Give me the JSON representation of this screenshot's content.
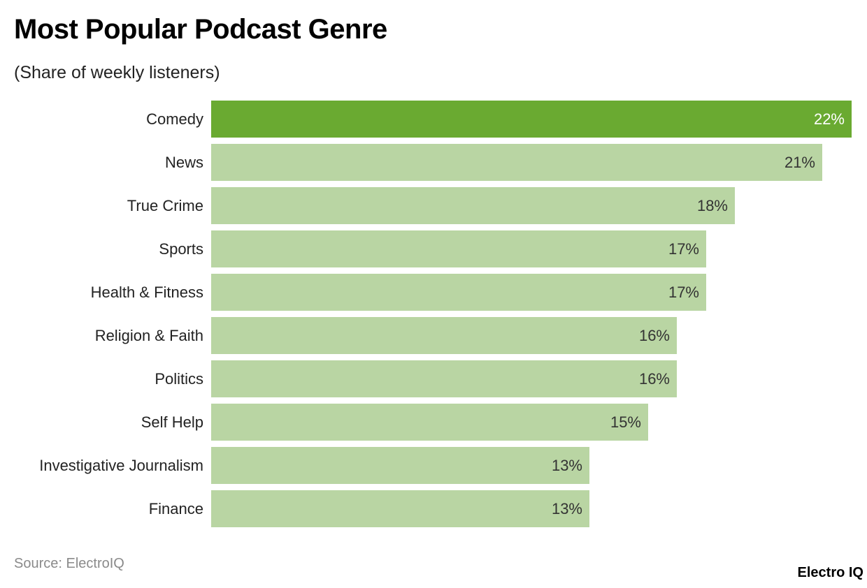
{
  "header": {
    "title": "Most Popular Podcast Genre",
    "subtitle": "(Share of weekly listeners)"
  },
  "footer": {
    "source": "Source: ElectroIQ",
    "brand": "Electro IQ"
  },
  "colors": {
    "highlight": "#6aaa31",
    "bar": "#b9d5a3"
  },
  "chart_data": {
    "type": "bar",
    "orientation": "horizontal",
    "title": "Most Popular Podcast Genre",
    "subtitle": "(Share of weekly listeners)",
    "xlabel": "",
    "ylabel": "",
    "unit": "%",
    "grid": false,
    "legend": null,
    "categories": [
      "Comedy",
      "News",
      "True Crime",
      "Sports",
      "Health & Fitness",
      "Religion & Faith",
      "Politics",
      "Self Help",
      "Investigative Journalism",
      "Finance"
    ],
    "values": [
      22,
      21,
      18,
      17,
      17,
      16,
      16,
      15,
      13,
      13
    ],
    "value_labels": [
      "22%",
      "21%",
      "18%",
      "17%",
      "17%",
      "16%",
      "16%",
      "15%",
      "13%",
      "13%"
    ],
    "highlighted_category": "Comedy",
    "xlim": [
      0,
      22
    ],
    "source": "Source: ElectroIQ"
  }
}
